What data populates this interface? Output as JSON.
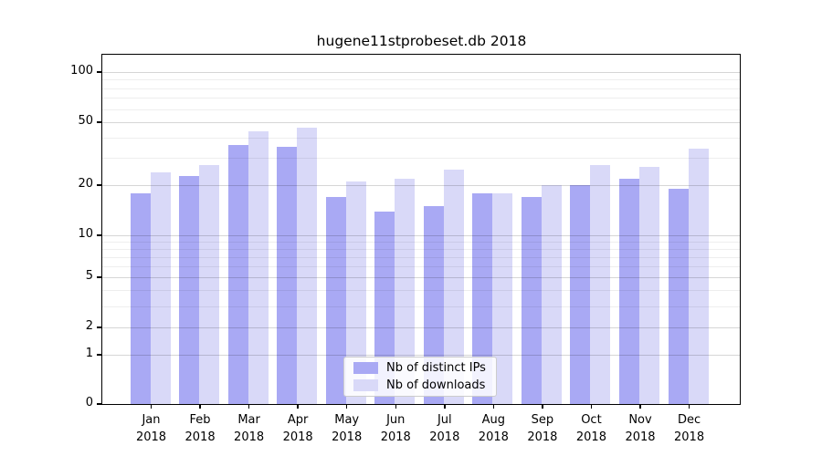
{
  "title": "hugene11stprobeset.db 2018",
  "legend": {
    "items": [
      {
        "label": "Nb of distinct IPs",
        "series": "ips"
      },
      {
        "label": "Nb of downloads",
        "series": "downloads"
      }
    ]
  },
  "colors": {
    "ips": "#a9a9f4",
    "downloads": "#d9d9f8",
    "grid_major": "rgba(0,0,0,0.16)",
    "grid_minor": "rgba(0,0,0,0.065)",
    "axis": "#000000",
    "legend_border": "#cccccc"
  },
  "chart_data": {
    "type": "bar",
    "title": "hugene11stprobeset.db 2018",
    "categories": [
      "Jan 2018",
      "Feb 2018",
      "Mar 2018",
      "Apr 2018",
      "May 2018",
      "Jun 2018",
      "Jul 2018",
      "Aug 2018",
      "Sep 2018",
      "Oct 2018",
      "Nov 2018",
      "Dec 2018"
    ],
    "series": [
      {
        "name": "Nb of distinct IPs",
        "values": [
          18,
          23,
          36,
          35,
          17,
          14,
          15,
          18,
          17,
          20,
          22,
          19
        ]
      },
      {
        "name": "Nb of downloads",
        "values": [
          24,
          27,
          44,
          46,
          21,
          22,
          25,
          18,
          20,
          27,
          26,
          34
        ]
      }
    ],
    "xlabel": "",
    "ylabel": "",
    "yscale": "log1p",
    "y_ticks": [
      0,
      1,
      2,
      5,
      10,
      20,
      50,
      100
    ],
    "y_minor_ticks": [
      3,
      4,
      6,
      7,
      8,
      9,
      30,
      40,
      60,
      70,
      80,
      90
    ],
    "ylim": [
      0,
      125
    ],
    "grid": "horizontal majors and minors, drawn on top of bars",
    "legend_position": "lower center"
  }
}
